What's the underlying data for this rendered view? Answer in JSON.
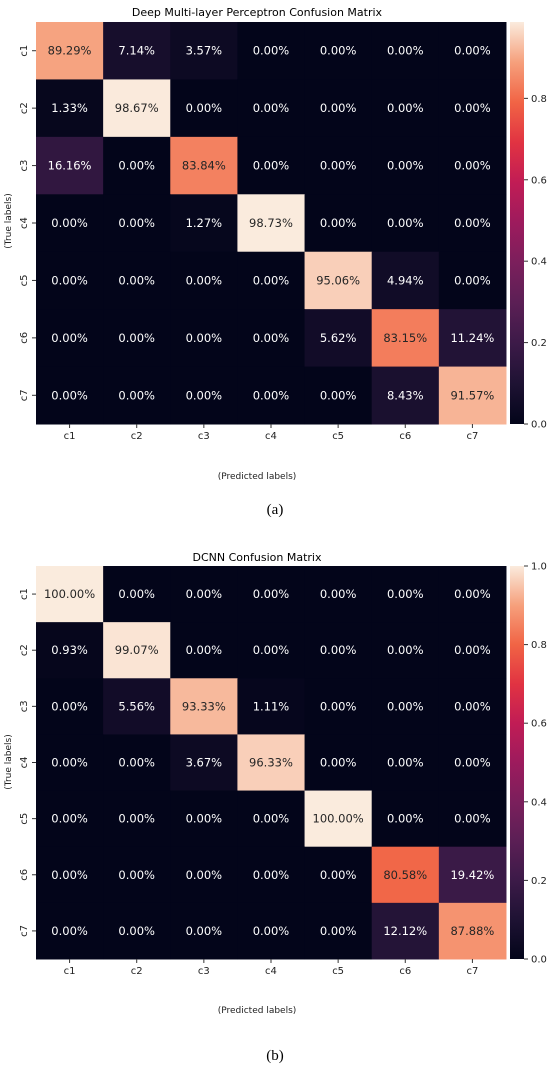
{
  "chart_data": [
    {
      "type": "heatmap",
      "title": "Deep Multi-layer Perceptron Confusion Matrix",
      "xlabel": "(Predicted labels)",
      "ylabel": "(True labels)",
      "x_categories": [
        "c1",
        "c2",
        "c3",
        "c4",
        "c5",
        "c6",
        "c7"
      ],
      "y_categories": [
        "c1",
        "c2",
        "c3",
        "c4",
        "c5",
        "c6",
        "c7"
      ],
      "values": [
        [
          89.29,
          7.14,
          3.57,
          0.0,
          0.0,
          0.0,
          0.0
        ],
        [
          1.33,
          98.67,
          0.0,
          0.0,
          0.0,
          0.0,
          0.0
        ],
        [
          16.16,
          0.0,
          83.84,
          0.0,
          0.0,
          0.0,
          0.0
        ],
        [
          0.0,
          0.0,
          1.27,
          98.73,
          0.0,
          0.0,
          0.0
        ],
        [
          0.0,
          0.0,
          0.0,
          0.0,
          95.06,
          4.94,
          0.0
        ],
        [
          0.0,
          0.0,
          0.0,
          0.0,
          5.62,
          83.15,
          11.24
        ],
        [
          0.0,
          0.0,
          0.0,
          0.0,
          0.0,
          8.43,
          91.57
        ]
      ],
      "value_format": "percent_2dp",
      "colorbar": {
        "min": 0.0,
        "max": 0.9876,
        "ticks": [
          "0.0",
          "0.2",
          "0.4",
          "0.6",
          "0.8"
        ]
      },
      "colormap": "rocket",
      "caption": "(a)"
    },
    {
      "type": "heatmap",
      "title": "DCNN Confusion Matrix",
      "xlabel": "(Predicted labels)",
      "ylabel": "(True labels)",
      "x_categories": [
        "c1",
        "c2",
        "c3",
        "c4",
        "c5",
        "c6",
        "c7"
      ],
      "y_categories": [
        "c1",
        "c2",
        "c3",
        "c4",
        "c5",
        "c6",
        "c7"
      ],
      "values": [
        [
          100.0,
          0.0,
          0.0,
          0.0,
          0.0,
          0.0,
          0.0
        ],
        [
          0.93,
          99.07,
          0.0,
          0.0,
          0.0,
          0.0,
          0.0
        ],
        [
          0.0,
          5.56,
          93.33,
          1.11,
          0.0,
          0.0,
          0.0
        ],
        [
          0.0,
          0.0,
          3.67,
          96.33,
          0.0,
          0.0,
          0.0
        ],
        [
          0.0,
          0.0,
          0.0,
          0.0,
          100.0,
          0.0,
          0.0
        ],
        [
          0.0,
          0.0,
          0.0,
          0.0,
          0.0,
          80.58,
          19.42
        ],
        [
          0.0,
          0.0,
          0.0,
          0.0,
          0.0,
          12.12,
          87.88
        ]
      ],
      "value_format": "percent_2dp",
      "colorbar": {
        "min": 0.0,
        "max": 1.0,
        "ticks": [
          "0.0",
          "0.2",
          "0.4",
          "0.6",
          "0.8",
          "1.0"
        ]
      },
      "colormap": "rocket",
      "caption": "(b)"
    }
  ]
}
